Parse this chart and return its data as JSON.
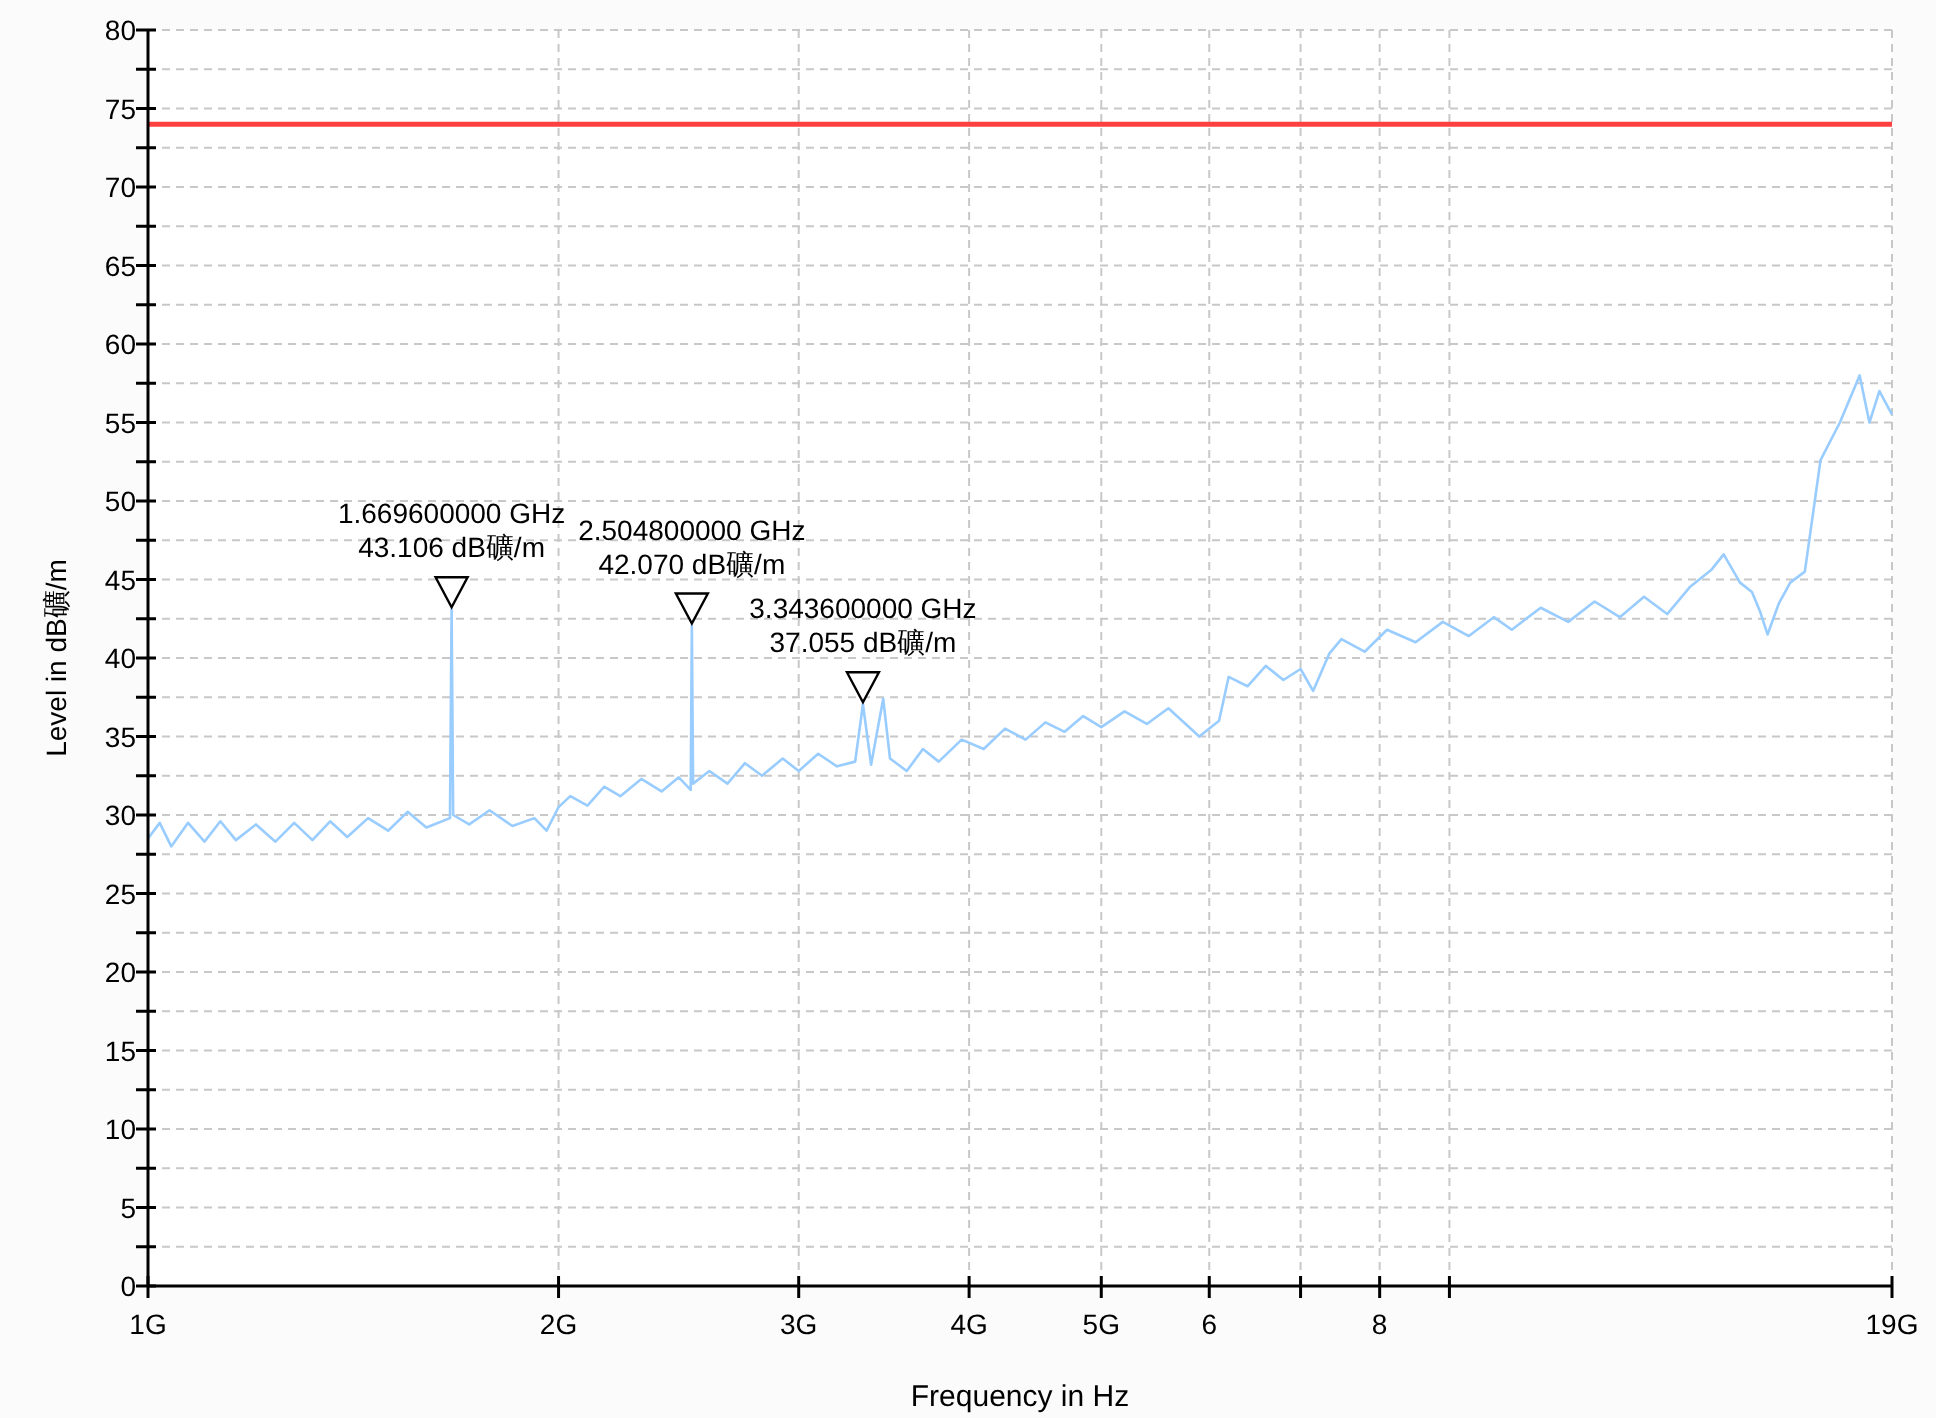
{
  "chart_data": {
    "type": "line",
    "xlabel": "Frequency in Hz",
    "ylabel": "Level in dB礦/m",
    "log": "x",
    "grid": true,
    "xlim": [
      1,
      19
    ],
    "xticks": [
      {
        "value": 1,
        "label": "1G"
      },
      {
        "value": 2,
        "label": "2G"
      },
      {
        "value": 3,
        "label": "3G"
      },
      {
        "value": 4,
        "label": "4G"
      },
      {
        "value": 5,
        "label": "5G"
      },
      6,
      {
        "value": 7,
        "label": null
      },
      8,
      {
        "value": 9,
        "label": null
      },
      {
        "value": 19,
        "label": "19G"
      }
    ],
    "ylim": [
      0,
      80
    ],
    "yticks": [
      0,
      {
        "value": 2.5,
        "label": null
      },
      5,
      {
        "value": 7.5,
        "label": null
      },
      10,
      {
        "value": 12.5,
        "label": null
      },
      15,
      {
        "value": 17.5,
        "label": null
      },
      20,
      {
        "value": 22.5,
        "label": null
      },
      25,
      {
        "value": 27.5,
        "label": null
      },
      30,
      {
        "value": 32.5,
        "label": null
      },
      35,
      {
        "value": 37.5,
        "label": null
      },
      40,
      {
        "value": 42.5,
        "label": null
      },
      45,
      {
        "value": 47.5,
        "label": null
      },
      50,
      {
        "value": 52.5,
        "label": null
      },
      55,
      {
        "value": 57.5,
        "label": null
      },
      60,
      {
        "value": 62.5,
        "label": null
      },
      65,
      {
        "value": 67.5,
        "label": null
      },
      70,
      {
        "value": 72.5,
        "label": null
      },
      75,
      {
        "value": 77.5,
        "label": null
      },
      80
    ],
    "ref_lines": [
      {
        "axis": "y",
        "value": 74,
        "color": "#ff4040"
      }
    ],
    "series": [
      {
        "color": "#99ccff",
        "marker": "none",
        "x": [
          1,
          1.02,
          1.04,
          1.07,
          1.1,
          1.13,
          1.16,
          1.2,
          1.24,
          1.28,
          1.32,
          1.36,
          1.4,
          1.45,
          1.5,
          1.55,
          1.6,
          1.665,
          1.6696,
          1.674,
          1.72,
          1.78,
          1.85,
          1.92,
          1.96,
          2,
          2.04,
          2.1,
          2.16,
          2.22,
          2.3,
          2.38,
          2.45,
          2.5,
          2.5048,
          2.51,
          2.58,
          2.66,
          2.74,
          2.82,
          2.92,
          3,
          3.1,
          3.2,
          3.3,
          3.3436,
          3.39,
          3.46,
          3.5,
          3.6,
          3.7,
          3.8,
          3.95,
          4.1,
          4.25,
          4.4,
          4.55,
          4.7,
          4.85,
          5,
          5.2,
          5.4,
          5.6,
          5.9,
          6.1,
          6.2,
          6.4,
          6.6,
          6.8,
          7,
          7.15,
          7.35,
          7.5,
          7.8,
          8.1,
          8.5,
          8.9,
          9.3,
          9.7,
          10,
          10.5,
          11,
          11.5,
          12,
          12.5,
          13,
          13.5,
          14,
          14.3,
          14.7,
          15,
          15.2,
          15.4,
          15.7,
          16,
          16.4,
          16.84,
          17.4,
          17.99,
          18.29,
          18.6,
          19
        ],
        "values": [
          28.5,
          29.5,
          28,
          29.5,
          28.3,
          29.6,
          28.4,
          29.4,
          28.3,
          29.5,
          28.4,
          29.6,
          28.6,
          29.8,
          29,
          30.2,
          29.2,
          29.8,
          43.106,
          30,
          29.4,
          30.3,
          29.3,
          29.8,
          29,
          30.5,
          31.2,
          30.6,
          31.8,
          31.2,
          32.3,
          31.5,
          32.4,
          31.6,
          42.07,
          32,
          32.8,
          32,
          33.3,
          32.5,
          33.6,
          32.8,
          33.9,
          33.1,
          33.4,
          37.055,
          33.2,
          37.4,
          33.6,
          32.8,
          34.2,
          33.4,
          34.8,
          34.2,
          35.5,
          34.8,
          35.9,
          35.3,
          36.3,
          35.6,
          36.6,
          35.8,
          36.8,
          35,
          36,
          38.8,
          38.2,
          39.5,
          38.6,
          39.3,
          37.9,
          40.3,
          41.2,
          40.4,
          41.8,
          41,
          42.3,
          41.4,
          42.6,
          41.8,
          43.2,
          42.3,
          43.6,
          42.6,
          43.9,
          42.8,
          44.5,
          45.6,
          46.6,
          44.8,
          44.2,
          43,
          41.5,
          43.5,
          44.8,
          45.5,
          52.6,
          55,
          58,
          55,
          57,
          55.5
        ]
      }
    ],
    "annotations": [
      {
        "text": "1.669600000 GHz\n43.106 dB礦/m",
        "x": 1.6696,
        "y": 43.106
      },
      {
        "text": "2.504800000 GHz\n42.070 dB礦/m",
        "x": 2.5048,
        "y": 42.07
      },
      {
        "text": "3.343600000 GHz\n37.055 dB礦/m",
        "x": 3.3436,
        "y": 37.055
      }
    ]
  }
}
